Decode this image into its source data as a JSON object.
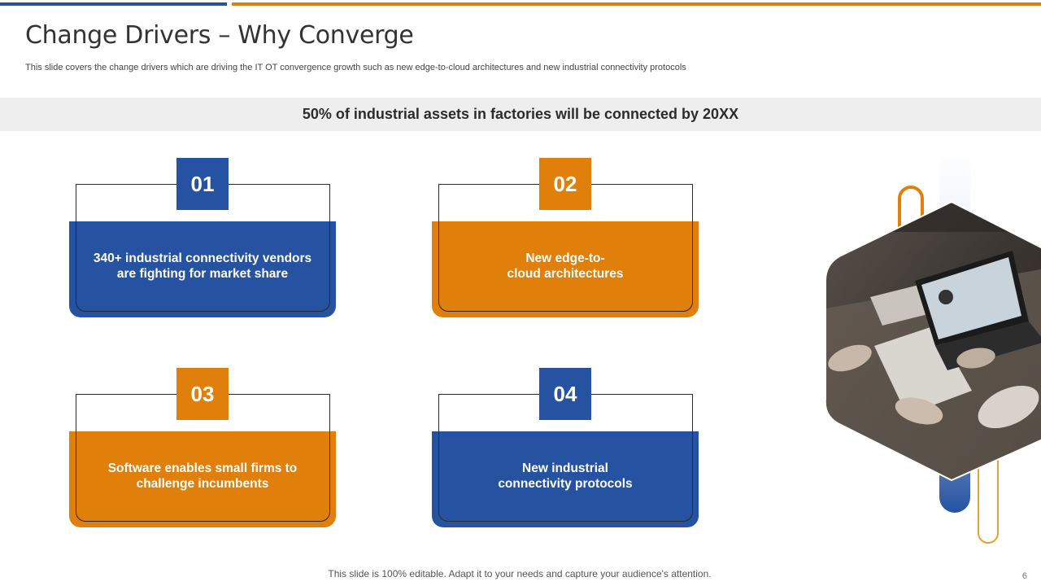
{
  "slide": {
    "title": "Change Drivers – Why Converge",
    "subtitle": "This slide covers the change drivers which are driving the IT OT convergence growth such as new edge-to-cloud architectures and new industrial connectivity protocols",
    "banner": "50% of industrial assets in factories will be connected by 20XX",
    "footer": "This slide is 100% editable. Adapt it to your needs and capture your audience's attention.",
    "page_number": "6"
  },
  "cards": [
    {
      "number": "01",
      "text": "340+ industrial connectivity  vendors\nare fighting for market share",
      "color": "#2553a1"
    },
    {
      "number": "02",
      "text": "New edge-to-\ncloud architectures",
      "color": "#e07f09"
    },
    {
      "number": "03",
      "text": "Software enables small firms to\nchallenge incumbents",
      "color": "#e07f09"
    },
    {
      "number": "04",
      "text": "New industrial\nconnectivity protocols",
      "color": "#2553a1"
    }
  ],
  "icons": {
    "photo": "meeting-photo-icon"
  },
  "colors": {
    "accent_blue": "#2553a1",
    "accent_orange": "#e07f09"
  }
}
